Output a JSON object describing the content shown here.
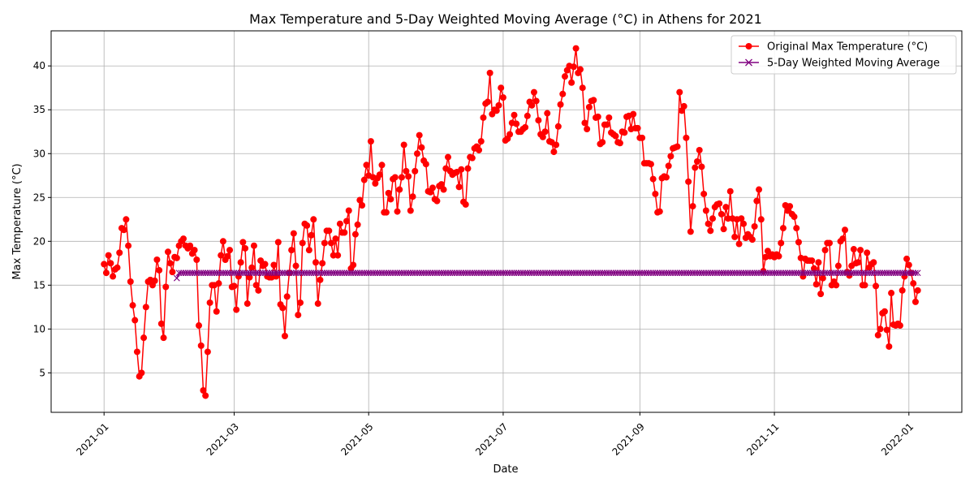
{
  "chart_data": {
    "type": "line",
    "title": "Max Temperature and 5-Day Weighted Moving Average (°C) in Athens for 2021",
    "xlabel": "Date",
    "ylabel": "Max Temperature (°C)",
    "xlim": [
      "2020-12-08",
      "2022-01-25"
    ],
    "ylim": [
      0.5,
      44
    ],
    "grid": true,
    "legend_position": "top-right",
    "x_ticks": [
      "2021-01",
      "2021-03",
      "2021-05",
      "2021-07",
      "2021-09",
      "2021-11",
      "2022-01"
    ],
    "x_tick_dates": [
      "2021-01-01",
      "2021-03-01",
      "2021-05-01",
      "2021-07-01",
      "2021-09-01",
      "2021-11-01",
      "2022-01-01"
    ],
    "y_ticks": [
      5,
      10,
      15,
      20,
      25,
      30,
      35,
      40
    ],
    "series": [
      {
        "name": "Original Max Temperature (°C)",
        "color": "#ff0000",
        "marker": "circle",
        "start_date": "2021-01-01",
        "step_days": 1,
        "values": [
          17.4,
          16.4,
          18.4,
          17.5,
          16.0,
          16.8,
          17.0,
          18.7,
          21.5,
          21.3,
          22.5,
          19.5,
          15.4,
          12.7,
          11.0,
          7.4,
          4.6,
          5.0,
          9.0,
          12.5,
          15.4,
          15.6,
          15.0,
          15.5,
          17.9,
          16.7,
          10.6,
          9.0,
          14.8,
          18.8,
          17.5,
          16.5,
          18.2,
          18.1,
          19.5,
          20.0,
          20.3,
          19.5,
          19.2,
          19.5,
          18.6,
          19.0,
          17.9,
          10.4,
          8.1,
          3.0,
          2.4,
          7.4,
          13.0,
          15.0,
          15.0,
          12.0,
          15.2,
          18.4,
          20.0,
          17.9,
          18.3,
          19.0,
          14.8,
          14.9,
          12.2,
          16.0,
          17.6,
          19.9,
          19.2,
          12.9,
          15.9,
          17.0,
          19.5,
          15.0,
          14.4,
          17.8,
          17.2,
          17.4,
          16.0,
          15.9,
          15.9,
          17.3,
          16.0,
          19.9,
          12.8,
          12.4,
          9.2,
          13.7,
          16.4,
          19.0,
          20.9,
          17.2,
          11.6,
          13.0,
          19.8,
          22.0,
          21.8,
          19.0,
          20.7,
          22.5,
          17.6,
          12.9,
          15.6,
          17.5,
          19.8,
          21.2,
          21.2,
          19.8,
          18.4,
          20.3,
          18.4,
          22.0,
          21.0,
          21.0,
          22.3,
          23.5,
          16.9,
          17.3,
          20.8,
          21.9,
          24.7,
          24.1,
          27.0,
          28.7,
          27.5,
          31.4,
          27.3,
          26.6,
          27.2,
          27.6,
          28.7,
          23.3,
          23.3,
          25.5,
          24.8,
          27.1,
          27.3,
          23.4,
          25.9,
          27.3,
          31.0,
          28.0,
          27.4,
          23.5,
          25.1,
          28.0,
          30.0,
          32.1,
          30.7,
          29.2,
          28.8,
          25.7,
          25.6,
          26.1,
          24.8,
          24.6,
          26.3,
          26.5,
          25.9,
          28.3,
          29.6,
          28.0,
          27.6,
          27.8,
          27.9,
          26.2,
          28.2,
          24.5,
          24.2,
          28.3,
          29.6,
          29.5,
          30.6,
          30.8,
          30.4,
          31.4,
          34.1,
          35.7,
          35.9,
          39.2,
          34.5,
          35.0,
          34.9,
          35.5,
          37.5,
          36.4,
          31.5,
          31.7,
          32.2,
          33.5,
          34.4,
          33.4,
          32.5,
          32.5,
          32.8,
          33.0,
          34.3,
          35.9,
          35.5,
          37.0,
          36.0,
          33.8,
          32.2,
          31.9,
          32.5,
          34.6,
          31.4,
          31.3,
          30.2,
          31.0,
          33.1,
          35.6,
          36.8,
          38.8,
          39.5,
          40.0,
          38.1,
          39.9,
          42.0,
          39.2,
          39.6,
          37.5,
          33.5,
          32.8,
          35.3,
          36.0,
          36.1,
          34.1,
          34.2,
          31.1,
          31.3,
          33.3,
          33.3,
          34.1,
          32.4,
          32.2,
          32.0,
          31.3,
          31.2,
          32.5,
          32.4,
          34.2,
          34.3,
          32.8,
          34.5,
          32.9,
          32.9,
          31.8,
          31.8,
          28.9,
          28.9,
          28.9,
          28.8,
          27.1,
          25.4,
          23.3,
          23.4,
          27.2,
          27.4,
          27.3,
          28.6,
          29.7,
          30.6,
          30.7,
          30.8,
          37.0,
          34.9,
          35.4,
          31.8,
          26.8,
          21.1,
          24.0,
          28.4,
          29.1,
          30.4,
          28.5,
          25.4,
          23.5,
          22.0,
          21.2,
          22.6,
          23.9,
          24.2,
          24.3,
          23.1,
          21.4,
          23.9,
          22.6,
          25.7,
          22.6,
          20.5,
          22.5,
          19.7,
          22.6,
          22.0,
          20.4,
          20.8,
          20.5,
          20.2,
          21.7,
          24.6,
          25.9,
          22.5,
          16.6,
          18.2,
          18.9,
          18.3,
          18.5,
          18.2,
          18.5,
          18.3,
          19.8,
          21.5,
          24.1,
          23.5,
          24.0,
          23.1,
          22.8,
          21.5,
          19.9,
          18.1,
          16.0,
          18.0,
          17.8,
          17.8,
          17.8,
          16.9,
          15.1,
          17.6,
          14.0,
          15.8,
          19.0,
          19.8,
          19.8,
          15.0,
          15.4,
          15.0,
          17.2,
          20.0,
          20.3,
          21.3,
          16.5,
          16.1,
          17.2,
          19.1,
          17.5,
          17.6,
          19.0,
          15.0,
          15.0,
          18.7,
          17.0,
          17.4,
          17.6,
          14.9,
          9.3,
          10.0,
          11.8,
          12.0,
          9.9,
          8.0,
          14.1,
          10.5,
          10.4,
          10.6,
          10.4,
          14.4,
          16.0,
          18.0,
          17.3,
          16.4,
          15.2,
          13.1,
          14.4
        ]
      },
      {
        "name": "5-Day Weighted Moving Average",
        "color": "#800080",
        "marker": "x",
        "start_date": "2021-02-03",
        "first_value": 15.8,
        "values": [
          16.4
        ]
      }
    ]
  }
}
